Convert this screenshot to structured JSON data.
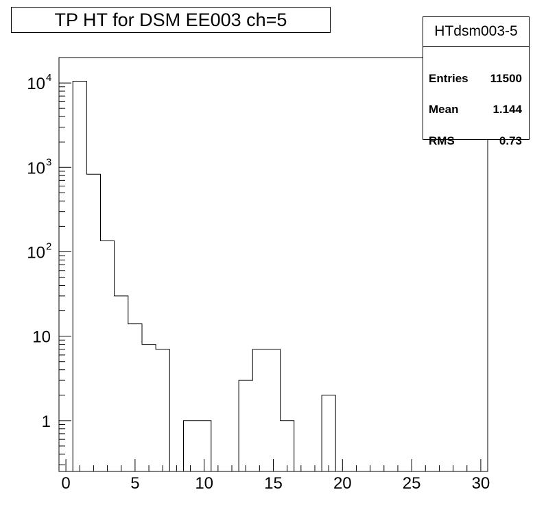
{
  "chart_data": {
    "type": "bar",
    "title": "TP HT for DSM EE003 ch=5",
    "xlabel": "",
    "ylabel": "",
    "x_scale": "linear",
    "y_scale": "log",
    "xlim": [
      -0.5,
      30.5
    ],
    "ylim": [
      0.25,
      20000
    ],
    "bin_width": 1,
    "bin_centers": [
      1,
      2,
      3,
      4,
      5,
      6,
      7,
      8,
      9,
      10,
      11,
      12,
      13,
      14,
      15,
      16,
      17,
      18,
      19
    ],
    "values": [
      10500,
      830,
      135,
      30,
      14,
      8,
      7,
      0,
      1,
      1,
      0,
      0,
      3,
      7,
      7,
      1,
      0,
      0,
      2
    ],
    "x_ticks": [
      0,
      5,
      10,
      15,
      20,
      25,
      30
    ],
    "y_ticks": [
      {
        "value": 1,
        "label": "1"
      },
      {
        "value": 10,
        "label": "10"
      },
      {
        "value": 100,
        "label": "10",
        "exp": "2"
      },
      {
        "value": 1000,
        "label": "10",
        "exp": "3"
      },
      {
        "value": 10000,
        "label": "10",
        "exp": "4"
      }
    ],
    "grid": false,
    "stats": {
      "name": "HTdsm003-5",
      "entries_label": "Entries",
      "entries": "11500",
      "mean_label": "Mean",
      "mean": "1.144",
      "rms_label": "RMS",
      "rms": "0.73"
    }
  }
}
